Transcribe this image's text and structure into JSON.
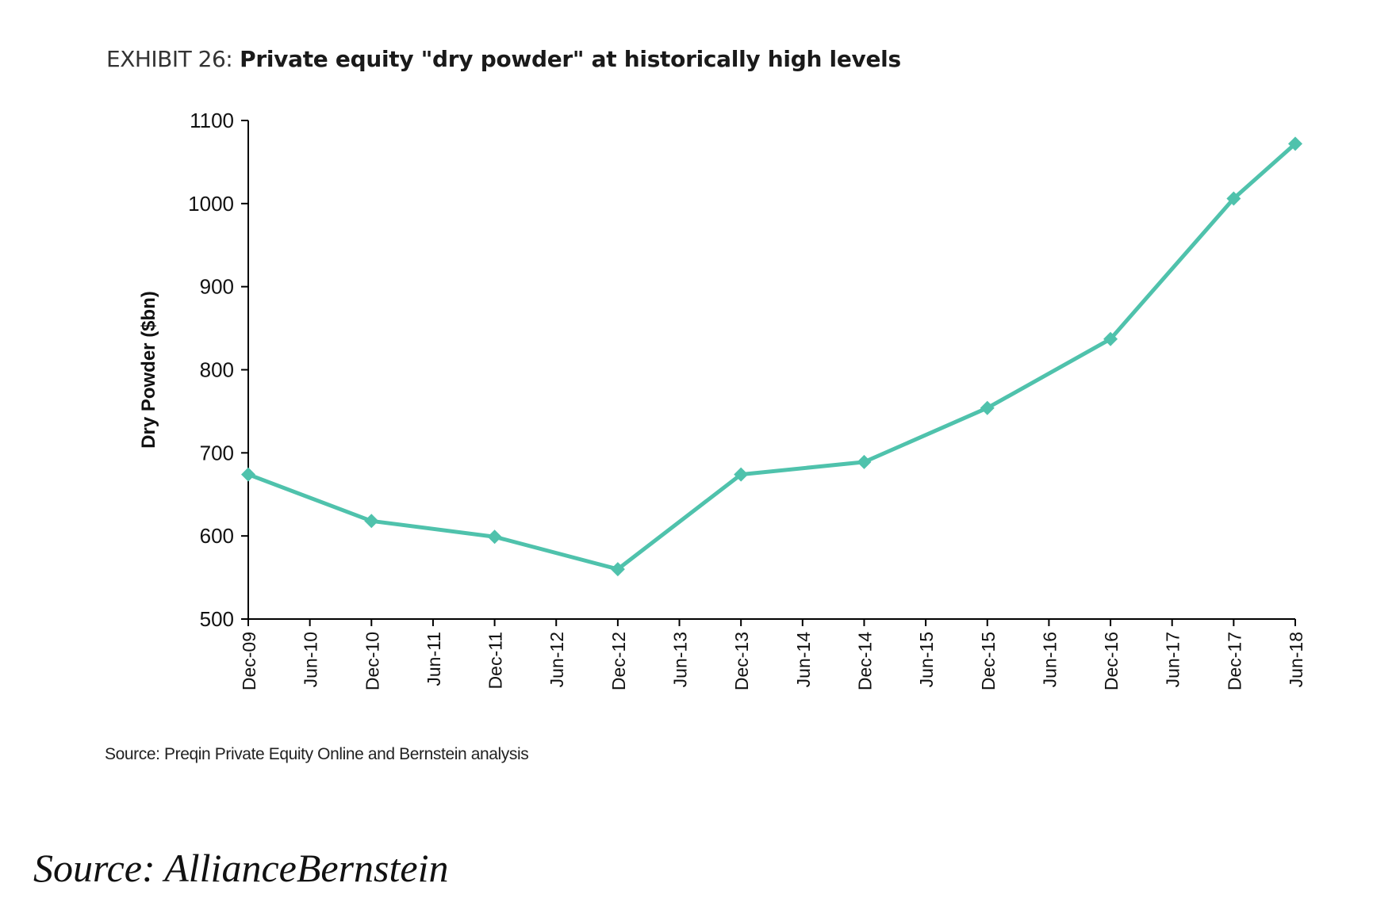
{
  "header": {
    "exhibit_label": "EXHIBIT 26:",
    "title": "Private equity \"dry powder\" at historically high levels"
  },
  "chart_data": {
    "type": "line",
    "ylabel": "Dry Powder ($bn)",
    "xlabel": "",
    "ylim": [
      500,
      1100
    ],
    "yticks": [
      500,
      600,
      700,
      800,
      900,
      1000,
      1100
    ],
    "x_tick_labels": [
      "Dec-09",
      "Jun-10",
      "Dec-10",
      "Jun-11",
      "Dec-11",
      "Jun-12",
      "Dec-12",
      "Jun-13",
      "Dec-13",
      "Jun-14",
      "Dec-14",
      "Jun-15",
      "Dec-15",
      "Jun-16",
      "Dec-16",
      "Jun-17",
      "Dec-17",
      "Jun-18"
    ],
    "grid": false,
    "series": [
      {
        "color": "#4fc2ac",
        "marker": "diamond",
        "x": [
          "Dec-09",
          "Dec-10",
          "Dec-11",
          "Dec-12",
          "Dec-13",
          "Dec-14",
          "Dec-15",
          "Dec-16",
          "Dec-17",
          "Jun-18"
        ],
        "values": [
          674,
          618,
          599,
          560,
          674,
          689,
          754,
          837,
          1006,
          1072
        ]
      }
    ]
  },
  "footer": {
    "source_note": "Source: Preqin Private Equity Online and Bernstein analysis",
    "credit": "Source: AllianceBernstein"
  }
}
